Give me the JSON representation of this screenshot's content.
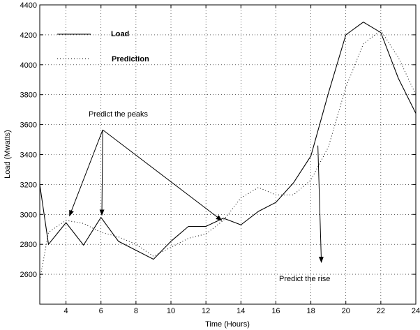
{
  "chart_data": {
    "type": "line",
    "xlabel": "Time (Hours)",
    "ylabel": "Load (Mwatts)",
    "xlim": [
      2.5,
      24
    ],
    "ylim": [
      2400,
      4400
    ],
    "xticks": [
      4,
      6,
      8,
      10,
      12,
      14,
      16,
      18,
      20,
      22,
      24
    ],
    "yticks": [
      2600,
      2800,
      3000,
      3200,
      3400,
      3600,
      3800,
      4000,
      4200,
      4400
    ],
    "grid": true,
    "legend_position": "top-left",
    "series": [
      {
        "name": "Load",
        "style": "solid",
        "x": [
          2.5,
          3,
          4,
          5,
          6,
          7,
          8,
          9,
          10,
          11,
          12,
          13,
          14,
          15,
          16,
          17,
          18,
          19,
          20,
          21,
          22,
          23,
          24
        ],
        "y": [
          3200,
          2800,
          2945,
          2795,
          2980,
          2820,
          2760,
          2700,
          2820,
          2920,
          2920,
          2975,
          2930,
          3020,
          3080,
          3210,
          3390,
          3810,
          4200,
          4285,
          4215,
          3910,
          3675
        ]
      },
      {
        "name": "Prediction",
        "style": "dotted",
        "x": [
          2.5,
          3,
          4,
          5,
          6,
          7,
          8,
          9,
          10,
          11,
          12,
          13,
          14,
          15,
          16,
          17,
          18,
          19,
          20,
          21,
          22,
          23,
          24
        ],
        "y": [
          2560,
          2880,
          2960,
          2940,
          2880,
          2850,
          2800,
          2720,
          2780,
          2840,
          2870,
          2960,
          3110,
          3180,
          3130,
          3130,
          3230,
          3450,
          3850,
          4140,
          4230,
          4050,
          3800
        ]
      }
    ],
    "annotations": [
      {
        "text": "Predict the peaks",
        "arrows": [
          {
            "from": [
              6.1,
              3565
            ],
            "to": [
              4.2,
              2990
            ]
          },
          {
            "from": [
              6.1,
              3565
            ],
            "to": [
              6.05,
              2995
            ]
          },
          {
            "from": [
              6.1,
              3565
            ],
            "to": [
              12.9,
              2960
            ]
          }
        ]
      },
      {
        "text": "Predict the rise",
        "arrows": [
          {
            "from": [
              18.4,
              3460
            ],
            "to": [
              18.6,
              2680
            ]
          }
        ]
      }
    ]
  }
}
